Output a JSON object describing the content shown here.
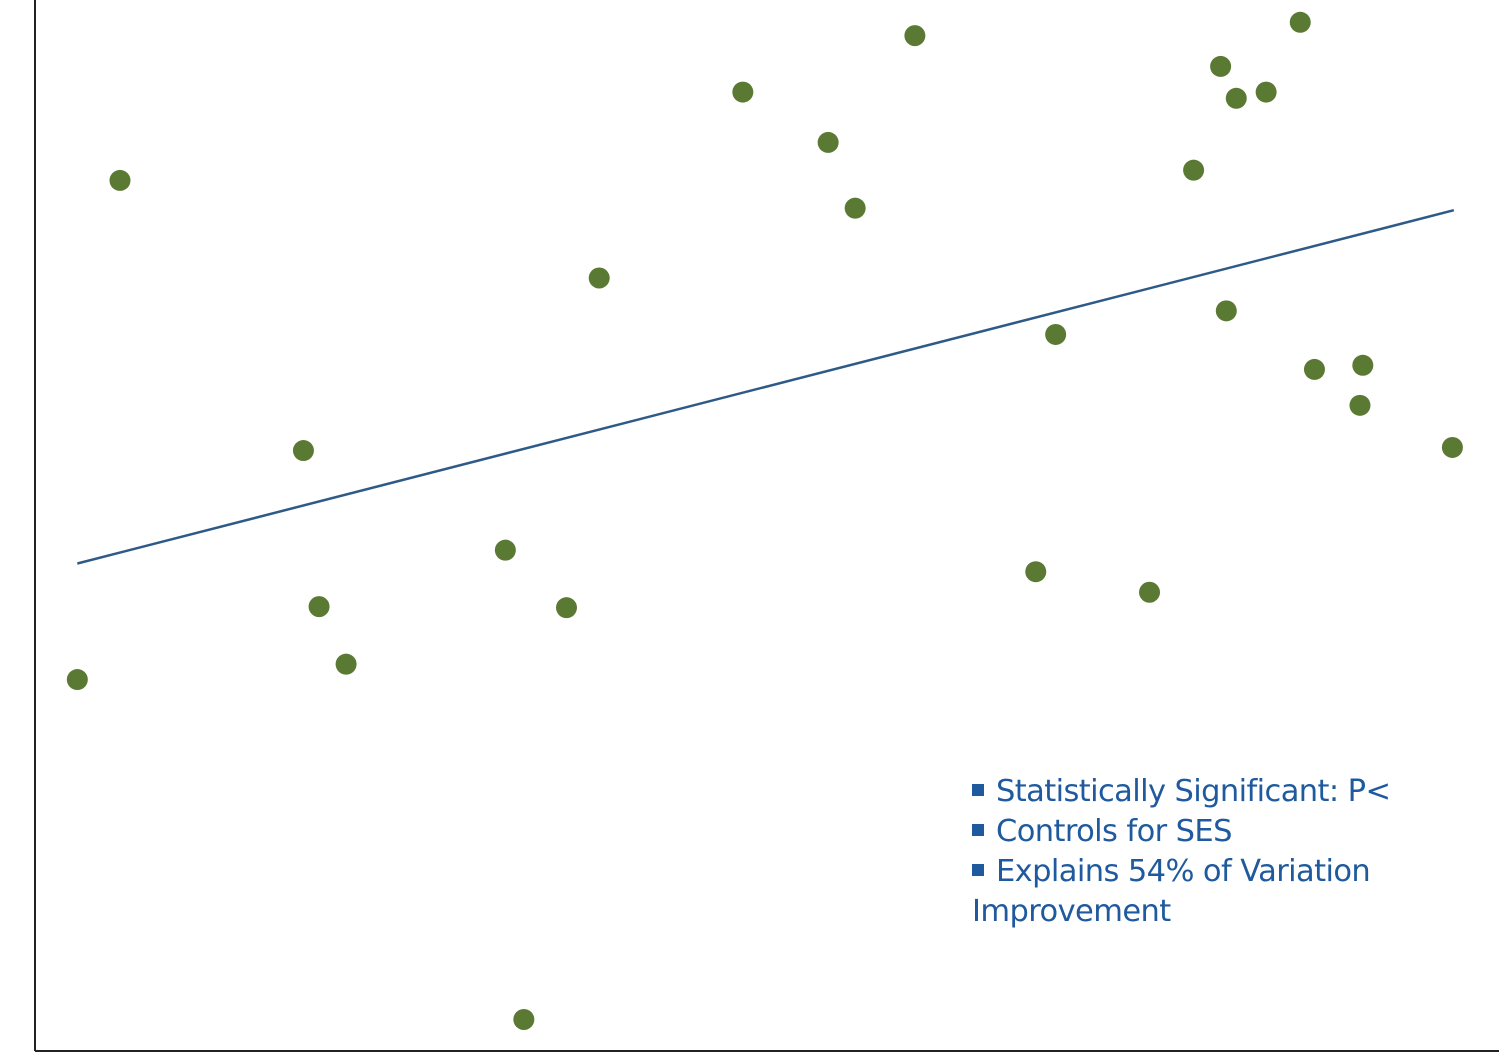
{
  "chart_data": {
    "type": "scatter",
    "title": "",
    "xlabel": "",
    "ylabel": "",
    "xlim": [
      0,
      100
    ],
    "ylim": [
      0,
      100
    ],
    "grid": false,
    "colors": {
      "points": "#5a7a34",
      "trend": "#2e5a88",
      "axis": "#222222",
      "notes": "#1f5a9e"
    },
    "points": [
      {
        "x": 1.5,
        "y": 35.0
      },
      {
        "x": 4.5,
        "y": 83.6
      },
      {
        "x": 17.4,
        "y": 57.3
      },
      {
        "x": 18.5,
        "y": 42.1
      },
      {
        "x": 20.4,
        "y": 36.5
      },
      {
        "x": 31.6,
        "y": 47.6
      },
      {
        "x": 32.9,
        "y": 1.9
      },
      {
        "x": 35.9,
        "y": 42.0
      },
      {
        "x": 38.2,
        "y": 74.1
      },
      {
        "x": 48.3,
        "y": 92.2
      },
      {
        "x": 54.3,
        "y": 87.3
      },
      {
        "x": 56.2,
        "y": 80.9
      },
      {
        "x": 60.4,
        "y": 97.7
      },
      {
        "x": 68.9,
        "y": 45.5
      },
      {
        "x": 70.3,
        "y": 68.6
      },
      {
        "x": 76.9,
        "y": 43.5
      },
      {
        "x": 80.0,
        "y": 84.6
      },
      {
        "x": 81.9,
        "y": 94.7
      },
      {
        "x": 82.3,
        "y": 70.9
      },
      {
        "x": 83.0,
        "y": 91.6
      },
      {
        "x": 85.1,
        "y": 92.2
      },
      {
        "x": 87.5,
        "y": 99.0
      },
      {
        "x": 88.5,
        "y": 65.2
      },
      {
        "x": 91.7,
        "y": 61.7
      },
      {
        "x": 91.9,
        "y": 65.6
      },
      {
        "x": 98.2,
        "y": 57.6
      }
    ],
    "trendline": {
      "x": [
        1.5,
        98.3
      ],
      "y": [
        46.3,
        80.7
      ]
    }
  },
  "notes": [
    {
      "bullet": true,
      "text": "Statistically Significant: P<"
    },
    {
      "bullet": true,
      "text": "Controls for SES"
    },
    {
      "bullet": true,
      "text": "Explains 54% of Variation"
    },
    {
      "bullet": false,
      "text": "Improvement"
    }
  ]
}
